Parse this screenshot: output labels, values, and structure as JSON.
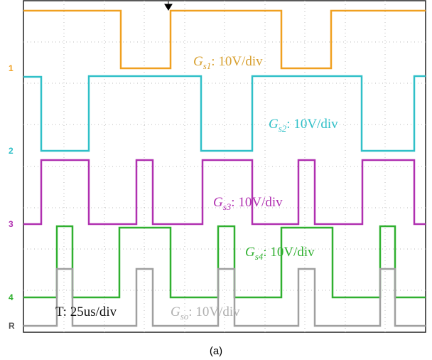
{
  "channels": [
    {
      "marker": "1",
      "label": {
        "symbol": "G",
        "subscript": "s1",
        "rest": ": 10V/div"
      }
    },
    {
      "marker": "2",
      "label": {
        "symbol": "G",
        "subscript": "s2",
        "rest": ": 10V/div"
      }
    },
    {
      "marker": "3",
      "label": {
        "symbol": "G",
        "subscript": "s3",
        "rest": ": 10V/div"
      }
    },
    {
      "marker": "4",
      "label": {
        "symbol": "G",
        "subscript": "s4",
        "rest": ": 10V/div"
      }
    },
    {
      "marker": "R",
      "label": {
        "symbol": "G",
        "subscript": "so",
        "rest": ": 10V/div"
      }
    }
  ],
  "timebase": "T: 25us/div",
  "caption": "(a)"
}
